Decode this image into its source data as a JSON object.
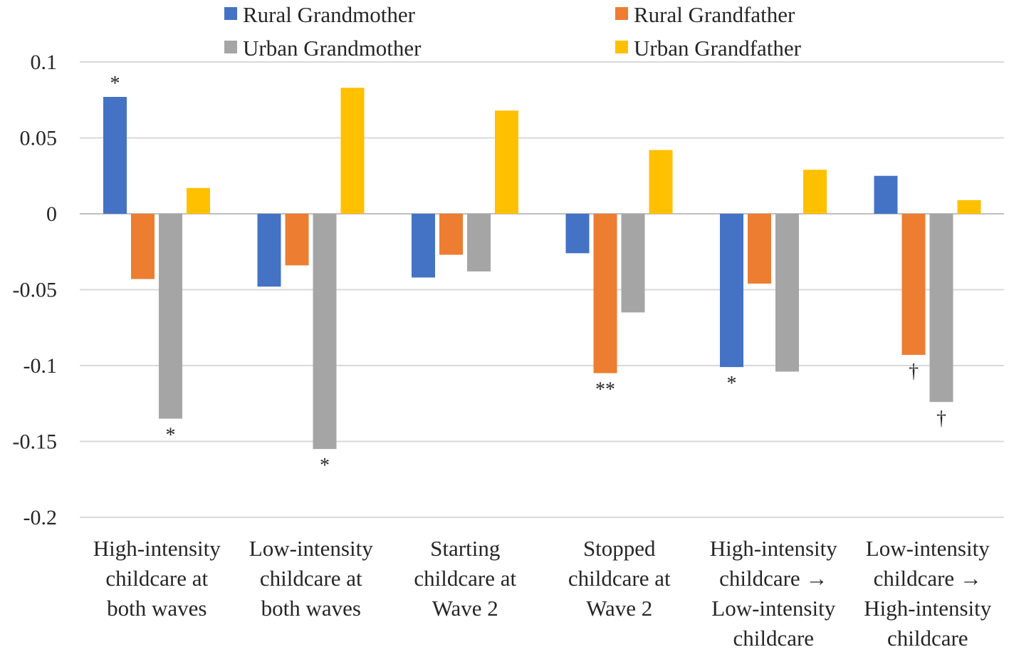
{
  "chart_data": {
    "type": "bar",
    "title": "",
    "xlabel": "",
    "ylabel": "",
    "ylim": [
      -0.2,
      0.1
    ],
    "yticks": [
      0.1,
      0.05,
      0,
      -0.05,
      -0.1,
      -0.15,
      -0.2
    ],
    "ytick_labels": [
      "0.1",
      "0.05",
      "0",
      "-0.05",
      "-0.1",
      "-0.15",
      "-0.2"
    ],
    "grid": true,
    "legend_position": "top",
    "categories": [
      [
        "High-intensity",
        "childcare at",
        "both waves"
      ],
      [
        "Low-intensity",
        "childcare at",
        "both waves"
      ],
      [
        "Starting",
        "childcare at",
        "Wave 2"
      ],
      [
        "Stopped",
        "childcare at",
        "Wave 2"
      ],
      [
        "High-intensity",
        "childcare →",
        "Low-intensity",
        "childcare"
      ],
      [
        "Low-intensity",
        "childcare →",
        "High-intensity",
        "childcare"
      ]
    ],
    "series": [
      {
        "name": "Rural Grandmother",
        "color": "#4472C4",
        "values": [
          0.077,
          -0.048,
          -0.042,
          -0.026,
          -0.101,
          0.025
        ]
      },
      {
        "name": "Rural Grandfather",
        "color": "#ED7D31",
        "values": [
          -0.043,
          -0.034,
          -0.027,
          -0.105,
          -0.046,
          -0.093
        ]
      },
      {
        "name": "Urban Grandmother",
        "color": "#A5A5A5",
        "values": [
          -0.135,
          -0.155,
          -0.038,
          -0.065,
          -0.104,
          -0.124
        ]
      },
      {
        "name": "Urban Grandfather",
        "color": "#FFC000",
        "values": [
          0.017,
          0.083,
          0.068,
          0.042,
          0.029,
          0.009
        ]
      }
    ],
    "annotations": [
      {
        "category": 0,
        "series": 0,
        "text": "*"
      },
      {
        "category": 0,
        "series": 2,
        "text": "*"
      },
      {
        "category": 1,
        "series": 2,
        "text": "*"
      },
      {
        "category": 3,
        "series": 1,
        "text": "**"
      },
      {
        "category": 4,
        "series": 0,
        "text": "*"
      },
      {
        "category": 5,
        "series": 1,
        "text": "†"
      },
      {
        "category": 5,
        "series": 2,
        "text": "†"
      }
    ]
  }
}
